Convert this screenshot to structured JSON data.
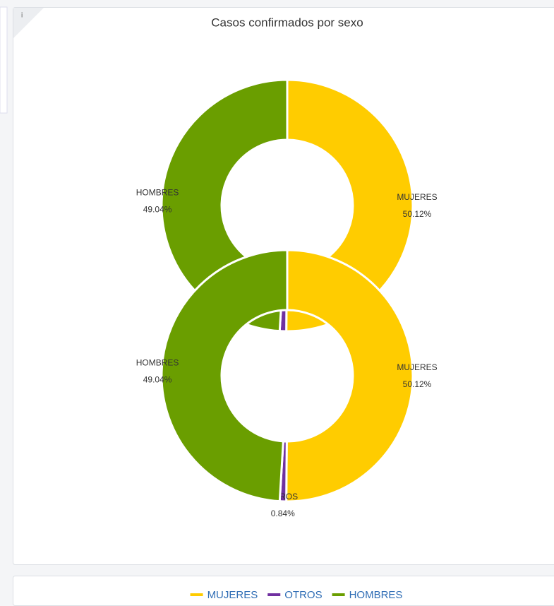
{
  "chart_data": [
    {
      "type": "donut",
      "title": "Casos confirmados por sexo",
      "categories": [
        "MUJERES",
        "OTROS",
        "HOMBRES"
      ],
      "values": [
        50.12,
        0.84,
        49.04
      ],
      "value_labels": [
        "50.12%",
        null,
        "49.04%"
      ],
      "colors": [
        "#ffcc00",
        "#7030a0",
        "#6a9e00"
      ],
      "legend": "bottom"
    },
    {
      "type": "donut",
      "categories": [
        "MUJERES",
        "OTROS",
        "HOMBRES"
      ],
      "values": [
        50.12,
        0.84,
        49.04
      ],
      "value_labels": [
        "50.12%",
        "0.84%",
        "49.04%"
      ],
      "colors": [
        "#ffcc00",
        "#7030a0",
        "#6a9e00"
      ]
    }
  ]
}
